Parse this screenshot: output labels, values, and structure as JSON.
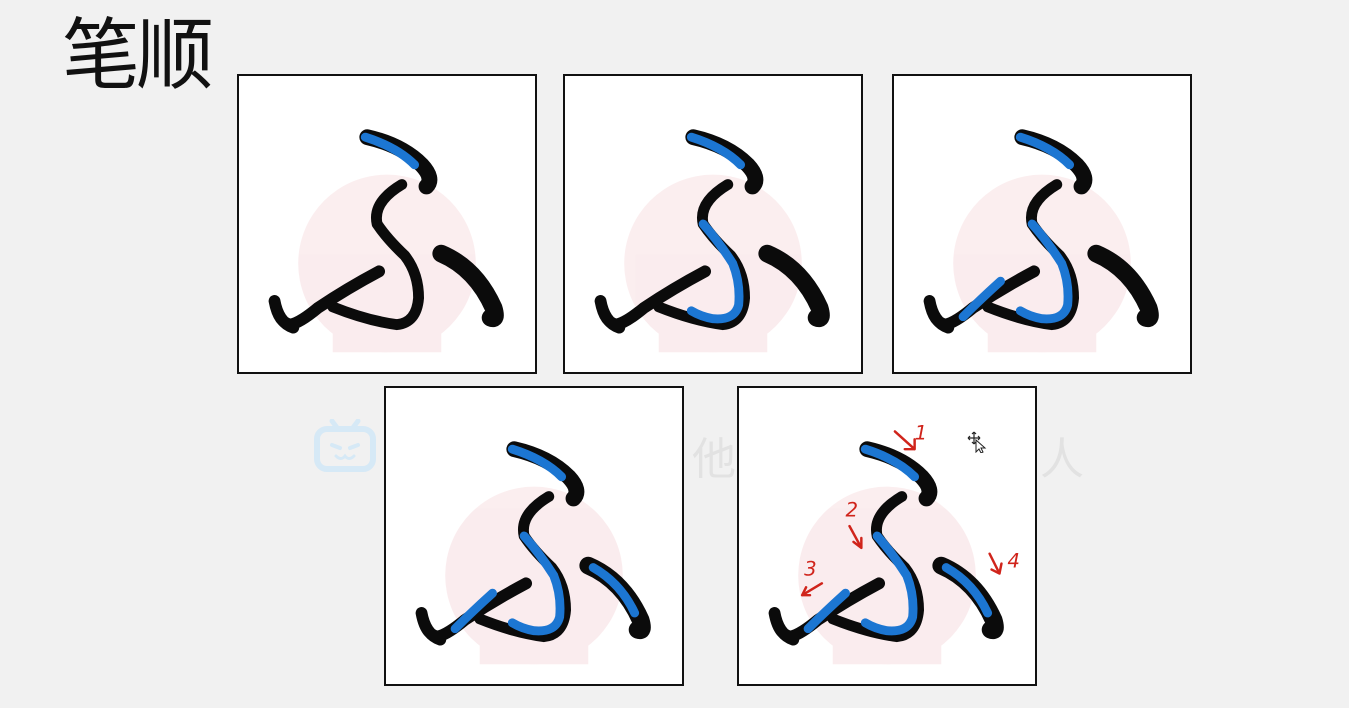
{
  "title": "笔顺",
  "watermark": {
    "text_left": "他",
    "text_right": "人",
    "logo_icon": "bilibili-tv-icon"
  },
  "panels": [
    {
      "highlighted_strokes": 1
    },
    {
      "highlighted_strokes": 2
    },
    {
      "highlighted_strokes": 3
    },
    {
      "highlighted_strokes": 4
    },
    {
      "highlighted_strokes": 4,
      "annotated": true
    }
  ],
  "annotations": {
    "n1": "1",
    "n2": "2",
    "n3": "3",
    "n4": "4"
  },
  "colors": {
    "ink": "#0b0b0b",
    "stroke_highlight": "#1c76d2",
    "annotation": "#d0241b",
    "panel_border": "#111111",
    "background": "#f1f1f1",
    "watermark": "#e2e2e2"
  }
}
